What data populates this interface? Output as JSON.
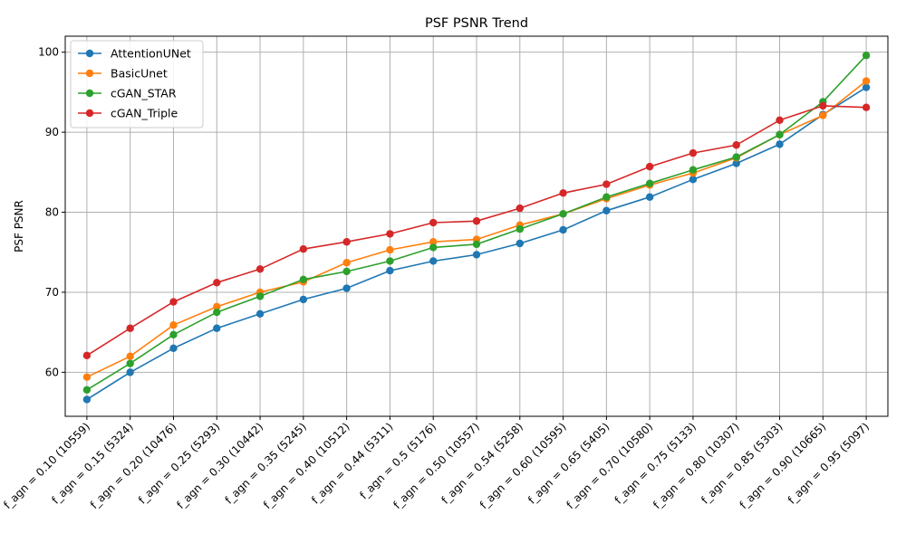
{
  "chart_data": {
    "type": "line",
    "title": "PSF PSNR Trend",
    "xlabel": "",
    "ylabel": "PSF PSNR",
    "ylim": [
      54.5,
      102
    ],
    "yticks": [
      60,
      70,
      80,
      90,
      100
    ],
    "grid": true,
    "legend_position": "top-left",
    "categories": [
      "f_agn = 0.10 (10559)",
      "f_agn = 0.15 (5324)",
      "f_agn = 0.20 (10476)",
      "f_agn = 0.25 (5293)",
      "f_agn = 0.30 (10442)",
      "f_agn = 0.35 (5245)",
      "f_agn = 0.40 (10512)",
      "f_agn = 0.44 (5311)",
      "f_agn = 0.5 (5176)",
      "f_agn = 0.50 (10557)",
      "f_agn = 0.54 (5258)",
      "f_agn = 0.60 (10595)",
      "f_agn = 0.65 (5405)",
      "f_agn = 0.70 (10580)",
      "f_agn = 0.75 (5133)",
      "f_agn = 0.80 (10307)",
      "f_agn = 0.85 (5303)",
      "f_agn = 0.90 (10665)",
      "f_agn = 0.95 (5097)"
    ],
    "series": [
      {
        "name": "AttentionUNet",
        "color": "#1f77b4",
        "values": [
          56.6,
          60.0,
          63.0,
          65.5,
          67.3,
          69.1,
          70.5,
          72.7,
          73.9,
          74.7,
          76.1,
          77.8,
          80.2,
          81.9,
          84.1,
          86.1,
          88.5,
          92.2,
          95.6
        ]
      },
      {
        "name": "BasicUnet",
        "color": "#ff7f0e",
        "values": [
          59.4,
          62.0,
          65.9,
          68.2,
          70.0,
          71.3,
          73.7,
          75.3,
          76.3,
          76.6,
          78.4,
          79.8,
          81.7,
          83.4,
          84.9,
          86.8,
          89.7,
          92.1,
          96.4
        ]
      },
      {
        "name": "cGAN_STAR",
        "color": "#2ca02c",
        "values": [
          57.8,
          61.1,
          64.7,
          67.5,
          69.5,
          71.6,
          72.6,
          73.9,
          75.6,
          76.0,
          77.9,
          79.8,
          81.9,
          83.6,
          85.3,
          86.9,
          89.7,
          93.8,
          99.6
        ]
      },
      {
        "name": "cGAN_Triple",
        "color": "#d62728",
        "values": [
          62.1,
          65.5,
          68.8,
          71.2,
          72.9,
          75.4,
          76.3,
          77.3,
          78.7,
          78.9,
          80.5,
          82.4,
          83.5,
          85.7,
          87.4,
          88.4,
          91.5,
          93.3,
          93.1
        ]
      }
    ]
  }
}
